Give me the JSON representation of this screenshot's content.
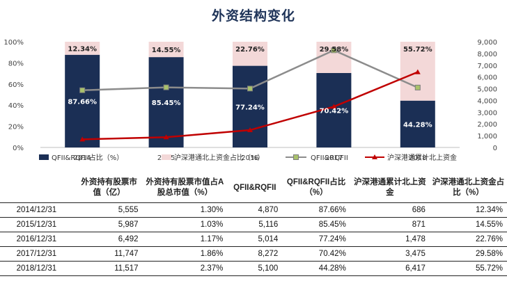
{
  "chart_data": {
    "title": "外资结构变化",
    "type": "bar",
    "categories": [
      "2014",
      "2015",
      "2016",
      "2017",
      "2018"
    ],
    "series": [
      {
        "name": "QFII&RQFII占比（%）",
        "type": "stacked-bar",
        "axis": "left",
        "values": [
          87.66,
          85.45,
          77.24,
          70.42,
          44.28
        ],
        "labels": [
          "87.66%",
          "85.45%",
          "77.24%",
          "70.42%",
          "44.28%"
        ],
        "color": "#1b2f55"
      },
      {
        "name": "沪深港通北上资金占比（%）",
        "type": "stacked-bar",
        "axis": "left",
        "values": [
          12.34,
          14.55,
          22.76,
          29.58,
          55.72
        ],
        "labels": [
          "12.34%",
          "14.55%",
          "22.76%",
          "29.58%",
          "55.72%"
        ],
        "color": "#f3d8d8"
      },
      {
        "name": "QFII&RQFII",
        "type": "line",
        "axis": "right",
        "marker": "square",
        "values": [
          4870,
          5116,
          5014,
          8272,
          5100
        ],
        "color": "#8c8c8c"
      },
      {
        "name": "沪深港通累计北上资金",
        "type": "line",
        "axis": "right",
        "marker": "triangle",
        "values": [
          686,
          871,
          1478,
          3475,
          6417
        ],
        "color": "#c00000"
      }
    ],
    "ylim_left": [
      0,
      100
    ],
    "yticks_left": [
      "0%",
      "20%",
      "40%",
      "60%",
      "80%",
      "100%"
    ],
    "ylim_right": [
      0,
      9000
    ],
    "yticks_right": [
      "0",
      "1,000",
      "2,000",
      "3,000",
      "4,000",
      "5,000",
      "6,000",
      "7,000",
      "8,000",
      "9,000"
    ],
    "grid": false,
    "legend_position": "bottom"
  },
  "table": {
    "headers": [
      "",
      "外资持有股票市值（亿）",
      "外资持有股票市值占A股总市值（%）",
      "QFII&RQFII",
      "QFII&RQFII占比（%）",
      "沪深港通累计北上资金",
      "沪深港通北上资金占比（%）"
    ],
    "rows": [
      [
        "2014/12/31",
        "5,555",
        "1.30%",
        "4,870",
        "87.66%",
        "686",
        "12.34%"
      ],
      [
        "2015/12/31",
        "5,987",
        "1.03%",
        "5,116",
        "85.45%",
        "871",
        "14.55%"
      ],
      [
        "2016/12/31",
        "6,492",
        "1.17%",
        "5,014",
        "77.24%",
        "1,478",
        "22.76%"
      ],
      [
        "2017/12/31",
        "11,747",
        "1.86%",
        "8,272",
        "70.42%",
        "3,475",
        "29.58%"
      ],
      [
        "2018/12/31",
        "11,517",
        "2.37%",
        "5,100",
        "44.28%",
        "6,417",
        "55.72%"
      ]
    ]
  }
}
